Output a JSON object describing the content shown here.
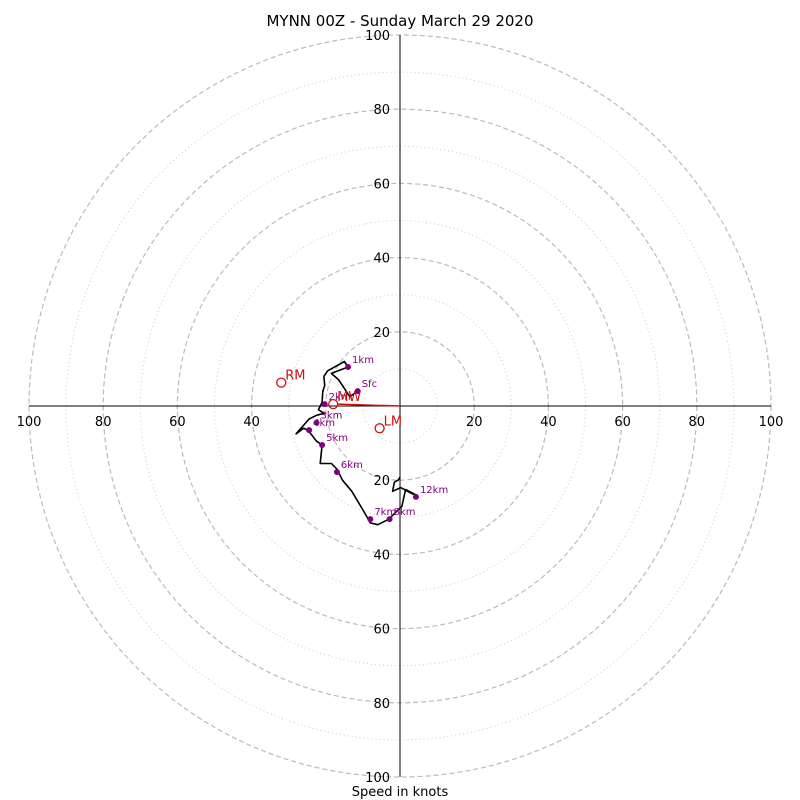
{
  "chart_data": {
    "type": "scatter",
    "title": "MYNN 00Z - Sunday March 29 2020",
    "xlabel": "Speed in knots",
    "ylabel": "",
    "xlim": [
      -100,
      100
    ],
    "ylim": [
      -100,
      100
    ],
    "rings_major": [
      20,
      40,
      60,
      80,
      100
    ],
    "rings_minor": [
      10,
      30,
      50,
      70,
      90
    ],
    "ticks": {
      "x": [
        {
          "value": -100,
          "label": "100"
        },
        {
          "value": -80,
          "label": "80"
        },
        {
          "value": -60,
          "label": "60"
        },
        {
          "value": -40,
          "label": "40"
        },
        {
          "value": 20,
          "label": "20"
        },
        {
          "value": 40,
          "label": "40"
        },
        {
          "value": 60,
          "label": "60"
        },
        {
          "value": 80,
          "label": "80"
        },
        {
          "value": 100,
          "label": "100"
        }
      ],
      "y": [
        {
          "value": 100,
          "label": "100"
        },
        {
          "value": 80,
          "label": "80"
        },
        {
          "value": 60,
          "label": "60"
        },
        {
          "value": 40,
          "label": "40"
        },
        {
          "value": 20,
          "label": "20"
        },
        {
          "value": -20,
          "label": "20"
        },
        {
          "value": -40,
          "label": "40"
        },
        {
          "value": -60,
          "label": "60"
        },
        {
          "value": -80,
          "label": "80"
        },
        {
          "value": -100,
          "label": "100"
        }
      ]
    },
    "trace": [
      [
        -11.4,
        4.0
      ],
      [
        -13.5,
        2.5
      ],
      [
        -14.5,
        4.0
      ],
      [
        -16.5,
        7.0
      ],
      [
        -18.5,
        8.8
      ],
      [
        -14.0,
        10.5
      ],
      [
        -15.0,
        12.0
      ],
      [
        -19.5,
        9.5
      ],
      [
        -20.5,
        8.0
      ],
      [
        -20.3,
        5.5
      ],
      [
        -20.8,
        4.0
      ],
      [
        -21.0,
        1.0
      ],
      [
        -22.0,
        -1.0
      ],
      [
        -20.5,
        -2.0
      ],
      [
        -22.5,
        -2.5
      ],
      [
        -24.5,
        -3.5
      ],
      [
        -28.0,
        -7.5
      ],
      [
        -26.0,
        -6.0
      ],
      [
        -24.8,
        -6.5
      ],
      [
        -22.5,
        -9.5
      ],
      [
        -21.0,
        -10.5
      ],
      [
        -21.5,
        -15.5
      ],
      [
        -18.5,
        -15.5
      ],
      [
        -17.0,
        -17.0
      ],
      [
        -15.5,
        -20.0
      ],
      [
        -13.0,
        -23.0
      ],
      [
        -10.0,
        -28.0
      ],
      [
        -8.0,
        -31.5
      ],
      [
        -6.0,
        -32.0
      ],
      [
        -3.0,
        -30.5
      ],
      [
        -1.5,
        -29.0
      ],
      [
        0.5,
        -27.0
      ],
      [
        1.5,
        -22.5
      ],
      [
        4.3,
        -24.0
      ],
      [
        3.0,
        -23.5
      ],
      [
        0.2,
        -22.0
      ],
      [
        -2.0,
        -23.0
      ],
      [
        -1.5,
        -20.5
      ],
      [
        -0.5,
        -20.0
      ],
      [
        0.0,
        -19.2
      ]
    ],
    "points": [
      {
        "label": "Sfc",
        "u": -11.4,
        "v": 4.0
      },
      {
        "label": "1km",
        "u": -14.0,
        "v": 10.5
      },
      {
        "label": "2km",
        "u": -20.3,
        "v": 0.5
      },
      {
        "label": "3km",
        "u": -22.5,
        "v": -4.5
      },
      {
        "label": "4km",
        "u": -24.5,
        "v": -6.5
      },
      {
        "label": "5km",
        "u": -21.0,
        "v": -10.5
      },
      {
        "label": "6km",
        "u": -17.0,
        "v": -17.8
      },
      {
        "label": "7km",
        "u": -8.0,
        "v": -30.5
      },
      {
        "label": "8km",
        "u": -2.8,
        "v": -30.5
      },
      {
        "label": "12km",
        "u": 4.3,
        "v": -24.5
      }
    ],
    "motion_markers": [
      {
        "label": "RM",
        "u": -32.0,
        "v": 6.3
      },
      {
        "label": "LM",
        "u": -5.5,
        "v": -6.0
      },
      {
        "label": "MW",
        "u": -18.0,
        "v": 0.5
      }
    ],
    "colors": {
      "trace": "#000000",
      "points": "#800080",
      "markers": "#cc1111",
      "rings": "#bbbbbb"
    }
  }
}
